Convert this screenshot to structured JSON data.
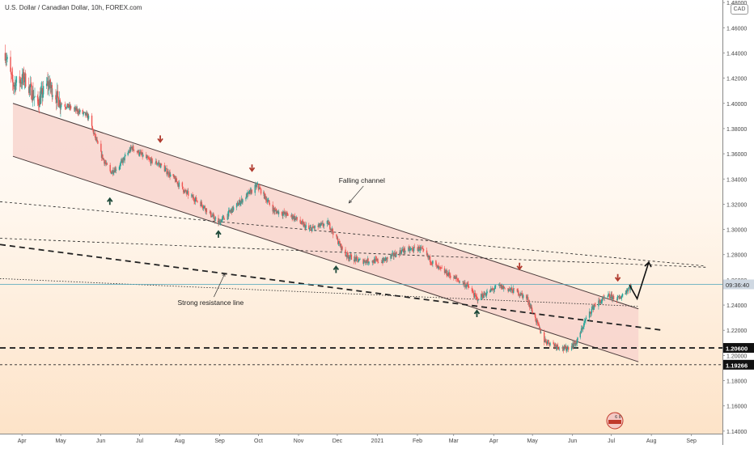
{
  "header": {
    "symbol_title": "U.S. Dollar / Canadian Dollar, 10h, FOREX.com",
    "currency_badge": "CAD"
  },
  "chart_data": {
    "type": "candlestick",
    "xlabel": "",
    "ylabel": "",
    "x_ticks": [
      "Apr",
      "May",
      "Jun",
      "Jul",
      "Aug",
      "Sep",
      "Oct",
      "Nov",
      "Dec",
      "2021",
      "Feb",
      "Mar",
      "Apr",
      "May",
      "Jun",
      "Jul",
      "Aug",
      "Sep"
    ],
    "y_ticks": [
      "1.14000",
      "1.16000",
      "1.18000",
      "1.20000",
      "1.22000",
      "1.24000",
      "1.26000",
      "1.28000",
      "1.30000",
      "1.32000",
      "1.34000",
      "1.36000",
      "1.38000",
      "1.40000",
      "1.42000",
      "1.44000",
      "1.46000",
      "1.48000"
    ],
    "ylim": [
      1.138,
      1.482
    ],
    "price_path": {
      "dates": [
        "2020-03-19",
        "2020-03-25",
        "2020-04-03",
        "2020-04-13",
        "2020-04-21",
        "2020-05-01",
        "2020-05-12",
        "2020-05-22",
        "2020-06-01",
        "2020-06-08",
        "2020-06-15",
        "2020-06-25",
        "2020-07-08",
        "2020-07-16",
        "2020-07-28",
        "2020-08-05",
        "2020-08-18",
        "2020-08-31",
        "2020-09-15",
        "2020-09-30",
        "2020-10-13",
        "2020-10-28",
        "2020-11-09",
        "2020-11-24",
        "2020-12-07",
        "2020-12-18",
        "2021-01-05",
        "2021-01-20",
        "2021-02-03",
        "2021-02-16",
        "2021-03-01",
        "2021-03-12",
        "2021-03-19",
        "2021-04-05",
        "2021-04-20",
        "2021-04-27",
        "2021-05-10",
        "2021-05-26",
        "2021-06-04",
        "2021-06-11",
        "2021-06-18",
        "2021-06-29",
        "2021-07-07",
        "2021-07-14",
        "2021-07-19"
      ],
      "closes": [
        1.44,
        1.415,
        1.42,
        1.4,
        1.416,
        1.4,
        1.395,
        1.39,
        1.36,
        1.345,
        1.35,
        1.365,
        1.355,
        1.352,
        1.34,
        1.33,
        1.32,
        1.305,
        1.32,
        1.335,
        1.315,
        1.31,
        1.3,
        1.305,
        1.28,
        1.275,
        1.275,
        1.283,
        1.285,
        1.27,
        1.262,
        1.255,
        1.245,
        1.255,
        1.25,
        1.245,
        1.212,
        1.205,
        1.21,
        1.228,
        1.24,
        1.247,
        1.245,
        1.253,
        1.2564
      ]
    },
    "current_price": {
      "label": "09:36:40",
      "value": 1.2564
    },
    "horizontal_levels": [
      {
        "label": "1.20600",
        "value": 1.206,
        "style": "dashed-heavy"
      },
      {
        "label": "1.19266",
        "value": 1.19266,
        "style": "dashed"
      }
    ],
    "channel": {
      "label": "Falling channel",
      "upper": {
        "start": [
          "2020-03-25",
          1.4
        ],
        "end": [
          "2021-07-22",
          1.237
        ]
      },
      "lower": {
        "start": [
          "2020-03-25",
          1.358
        ],
        "end": [
          "2021-07-22",
          1.195
        ]
      },
      "fill": "#f8d5ce",
      "stroke": "#4a3a3a"
    },
    "trendlines": [
      {
        "name": "Strong resistance line",
        "style": "dashed-heavy",
        "start": [
          "2020-03-15",
          1.288
        ],
        "end": [
          "2021-08-10",
          1.22
        ]
      },
      {
        "style": "dashed",
        "start": [
          "2020-03-15",
          1.322
        ],
        "end": [
          "2021-09-12",
          1.271
        ]
      },
      {
        "style": "dashed",
        "start": [
          "2020-03-15",
          1.293
        ],
        "end": [
          "2021-09-12",
          1.27
        ]
      },
      {
        "style": "dotted",
        "start": [
          "2020-03-15",
          1.261
        ],
        "end": [
          "2021-07-22",
          1.239
        ]
      }
    ],
    "annotations": [
      {
        "text": "Falling channel",
        "at": [
          "2020-12-20",
          1.337
        ],
        "arrow_to": [
          "2020-12-10",
          1.321
        ]
      },
      {
        "text": "Strong resistance line",
        "at": [
          "2020-08-25",
          1.24
        ],
        "arrow_to": [
          "2020-09-05",
          1.265
        ]
      }
    ],
    "markers_down": [
      [
        "2020-07-17",
        1.372
      ],
      [
        "2020-09-26",
        1.349
      ],
      [
        "2021-04-21",
        1.271
      ],
      [
        "2021-07-06",
        1.262
      ]
    ],
    "markers_up": [
      [
        "2020-06-08",
        1.322
      ],
      [
        "2020-08-31",
        1.296
      ],
      [
        "2020-11-30",
        1.268
      ],
      [
        "2021-03-19",
        1.233
      ]
    ],
    "projection": [
      [
        "2021-07-15",
        1.256
      ],
      [
        "2021-07-21",
        1.245
      ],
      [
        "2021-07-30",
        1.274
      ]
    ],
    "colors": {
      "up": "#26a69a",
      "down": "#ef5350",
      "bg_top": "#ffffff",
      "bg_bottom": "#fde3c8",
      "price_line": "#4ba5b8",
      "price_label_bg": "#cfd8e2"
    },
    "grid": false,
    "watermark_text": "6 8"
  }
}
